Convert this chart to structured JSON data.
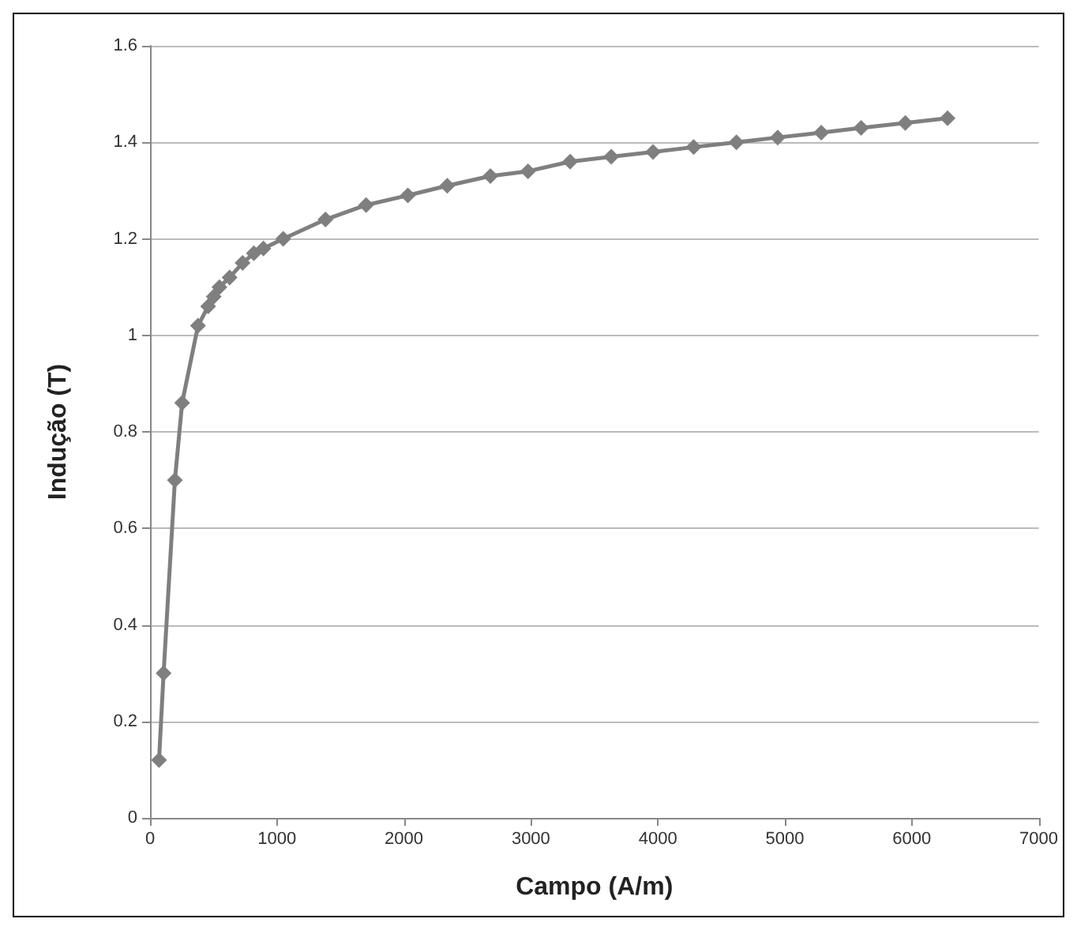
{
  "chart_data": {
    "type": "line",
    "xlabel": "Campo (A/m)",
    "ylabel": "Indução (T)",
    "x": [
      71,
      107,
      196,
      253,
      378,
      458,
      502,
      547,
      627,
      729,
      818,
      893,
      1049,
      1382,
      1702,
      2031,
      2341,
      2681,
      2977,
      3309,
      3633,
      3962,
      4282,
      4619,
      4944,
      5287,
      5601,
      5949,
      6282
    ],
    "series": [
      {
        "color": "#7f7f7f",
        "values": [
          0.12,
          0.3,
          0.7,
          0.86,
          1.02,
          1.06,
          1.08,
          1.1,
          1.12,
          1.15,
          1.17,
          1.18,
          1.2,
          1.24,
          1.27,
          1.29,
          1.31,
          1.33,
          1.34,
          1.36,
          1.37,
          1.38,
          1.39,
          1.4,
          1.41,
          1.42,
          1.43,
          1.44,
          1.45
        ]
      }
    ],
    "xlim": [
      0,
      7000
    ],
    "xticks": [
      0,
      1000,
      2000,
      3000,
      4000,
      5000,
      6000,
      7000
    ],
    "ylim": [
      0,
      1.6
    ],
    "yticks": [
      0,
      0.2,
      0.4,
      0.6,
      0.8,
      1,
      1.2,
      1.4,
      1.6
    ],
    "grid": "y",
    "marker": "diamond",
    "line_style": "solid"
  }
}
